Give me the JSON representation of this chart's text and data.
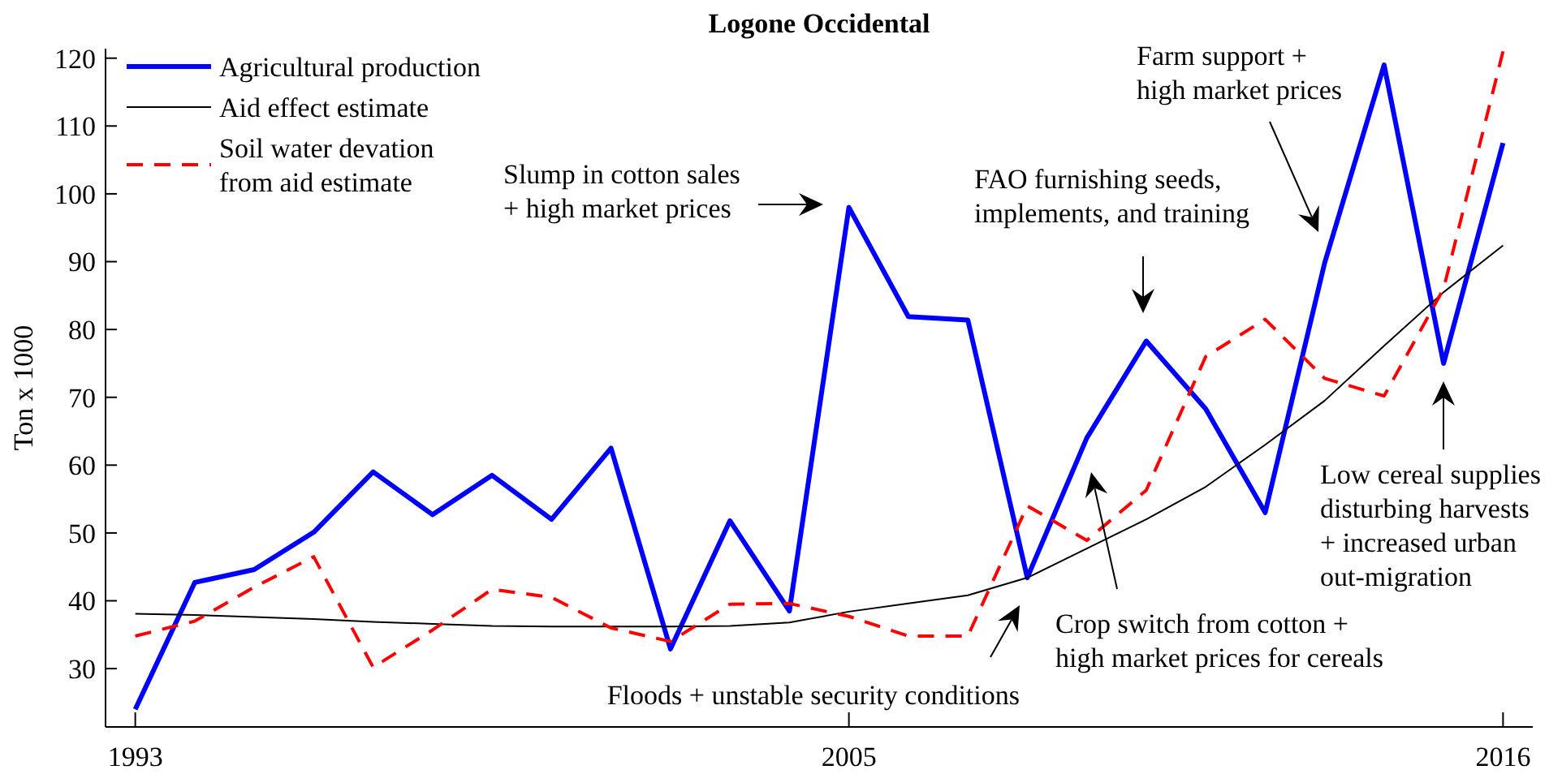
{
  "chart_data": {
    "type": "line",
    "title": "Logone Occidental",
    "ylabel": "Ton x 1000",
    "x": [
      1993,
      1994,
      1995,
      1996,
      1997,
      1998,
      1999,
      2000,
      2001,
      2002,
      2003,
      2004,
      2005,
      2006,
      2007,
      2008,
      2009,
      2010,
      2011,
      2012,
      2013,
      2014,
      2015,
      2016
    ],
    "series": [
      {
        "name": "Agricultural production",
        "color": "#0000ff",
        "line_style": "solid",
        "values": [
          24,
          42.7,
          44.6,
          50.1,
          59,
          52.7,
          58.5,
          52,
          62.5,
          32.9,
          51.8,
          38.5,
          98,
          81.9,
          81.4,
          43.4,
          64,
          78.3,
          68.3,
          53,
          89.8,
          119,
          75,
          107.5
        ]
      },
      {
        "name": "Aid effect estimate",
        "color": "#000000",
        "line_style": "solid",
        "values": [
          38.1,
          37.9,
          37.6,
          37.3,
          36.9,
          36.6,
          36.3,
          36.2,
          36.2,
          36.2,
          36.3,
          36.8,
          38.4,
          39.6,
          40.8,
          43.4,
          47.7,
          52,
          56.8,
          63,
          69.5,
          77.6,
          85.5,
          92.4
        ]
      },
      {
        "name": "Soil water devation\nfrom aid estimate",
        "color": "#ff0000",
        "line_style": "dashed",
        "values": [
          34.8,
          37,
          42,
          46.5,
          30.2,
          35.7,
          41.7,
          40.5,
          36,
          34,
          39.5,
          39.6,
          37.7,
          34.8,
          34.8,
          54,
          48.9,
          56.3,
          76,
          81.5,
          72.8,
          70.2,
          86,
          121
        ]
      }
    ],
    "xlim": [
      1992.5,
      2016.5
    ],
    "xticks": [
      1993,
      2005,
      2016
    ],
    "ylim": [
      21.4,
      121.4
    ],
    "yticks": [
      30,
      40,
      50,
      60,
      70,
      80,
      90,
      100,
      110,
      120
    ],
    "grid": false,
    "legend": "top left",
    "annotations": [
      "Slump in cotton sales\n+ high market prices",
      "FAO furnishing seeds,\nimplements, and training",
      "Farm support +\nhigh market prices",
      "Low cereal supplies\ndisturbing harvests\n+ increased urban\nout-migration",
      "Crop switch from cotton +\nhigh market prices for cereals",
      "Floods + unstable security conditions"
    ]
  }
}
